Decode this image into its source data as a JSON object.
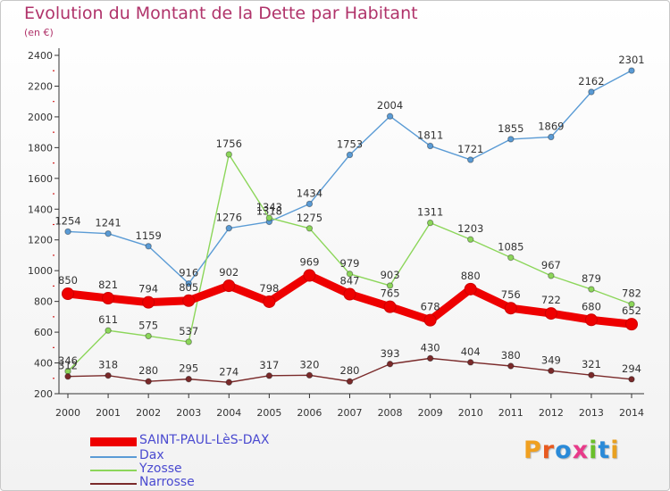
{
  "title": "Evolution du Montant de la Dette par Habitant",
  "subtitle": "(en €)",
  "logo": {
    "text": "Proxiti",
    "letter_colors": [
      "#f0a020",
      "#e85a20",
      "#2a8ad8",
      "#e83a8a",
      "#6abf2a",
      "#2a8ad8",
      "#e8a020"
    ]
  },
  "chart_data": {
    "type": "line",
    "x": [
      "2000",
      "2001",
      "2002",
      "2003",
      "2004",
      "2005",
      "2006",
      "2007",
      "2008",
      "2009",
      "2010",
      "2011",
      "2012",
      "2013",
      "2014"
    ],
    "ylim": [
      200,
      2400
    ],
    "yticks": [
      200,
      400,
      600,
      800,
      1000,
      1200,
      1400,
      1600,
      1800,
      2000,
      2200,
      2400
    ],
    "grid": false,
    "legend_position": "bottom-left",
    "series": [
      {
        "name": "SAINT-PAUL-LèS-DAX",
        "color": "#ee0000",
        "emphasis": true,
        "values": [
          850,
          821,
          794,
          805,
          902,
          798,
          969,
          847,
          765,
          678,
          880,
          756,
          722,
          680,
          652
        ]
      },
      {
        "name": "Dax",
        "color": "#5a9bd5",
        "emphasis": false,
        "values": [
          1254,
          1241,
          1159,
          916,
          1276,
          1318,
          1434,
          1753,
          2004,
          1811,
          1721,
          1855,
          1869,
          2162,
          2301
        ]
      },
      {
        "name": "Yzosse",
        "color": "#8cd65a",
        "emphasis": false,
        "values": [
          346,
          611,
          575,
          537,
          1756,
          1343,
          1275,
          979,
          903,
          1311,
          1203,
          1085,
          967,
          879,
          782
        ]
      },
      {
        "name": "Narrosse",
        "color": "#7a2a2a",
        "emphasis": false,
        "values": [
          312,
          318,
          280,
          295,
          274,
          317,
          320,
          280,
          393,
          430,
          404,
          380,
          349,
          321,
          294
        ]
      }
    ]
  }
}
